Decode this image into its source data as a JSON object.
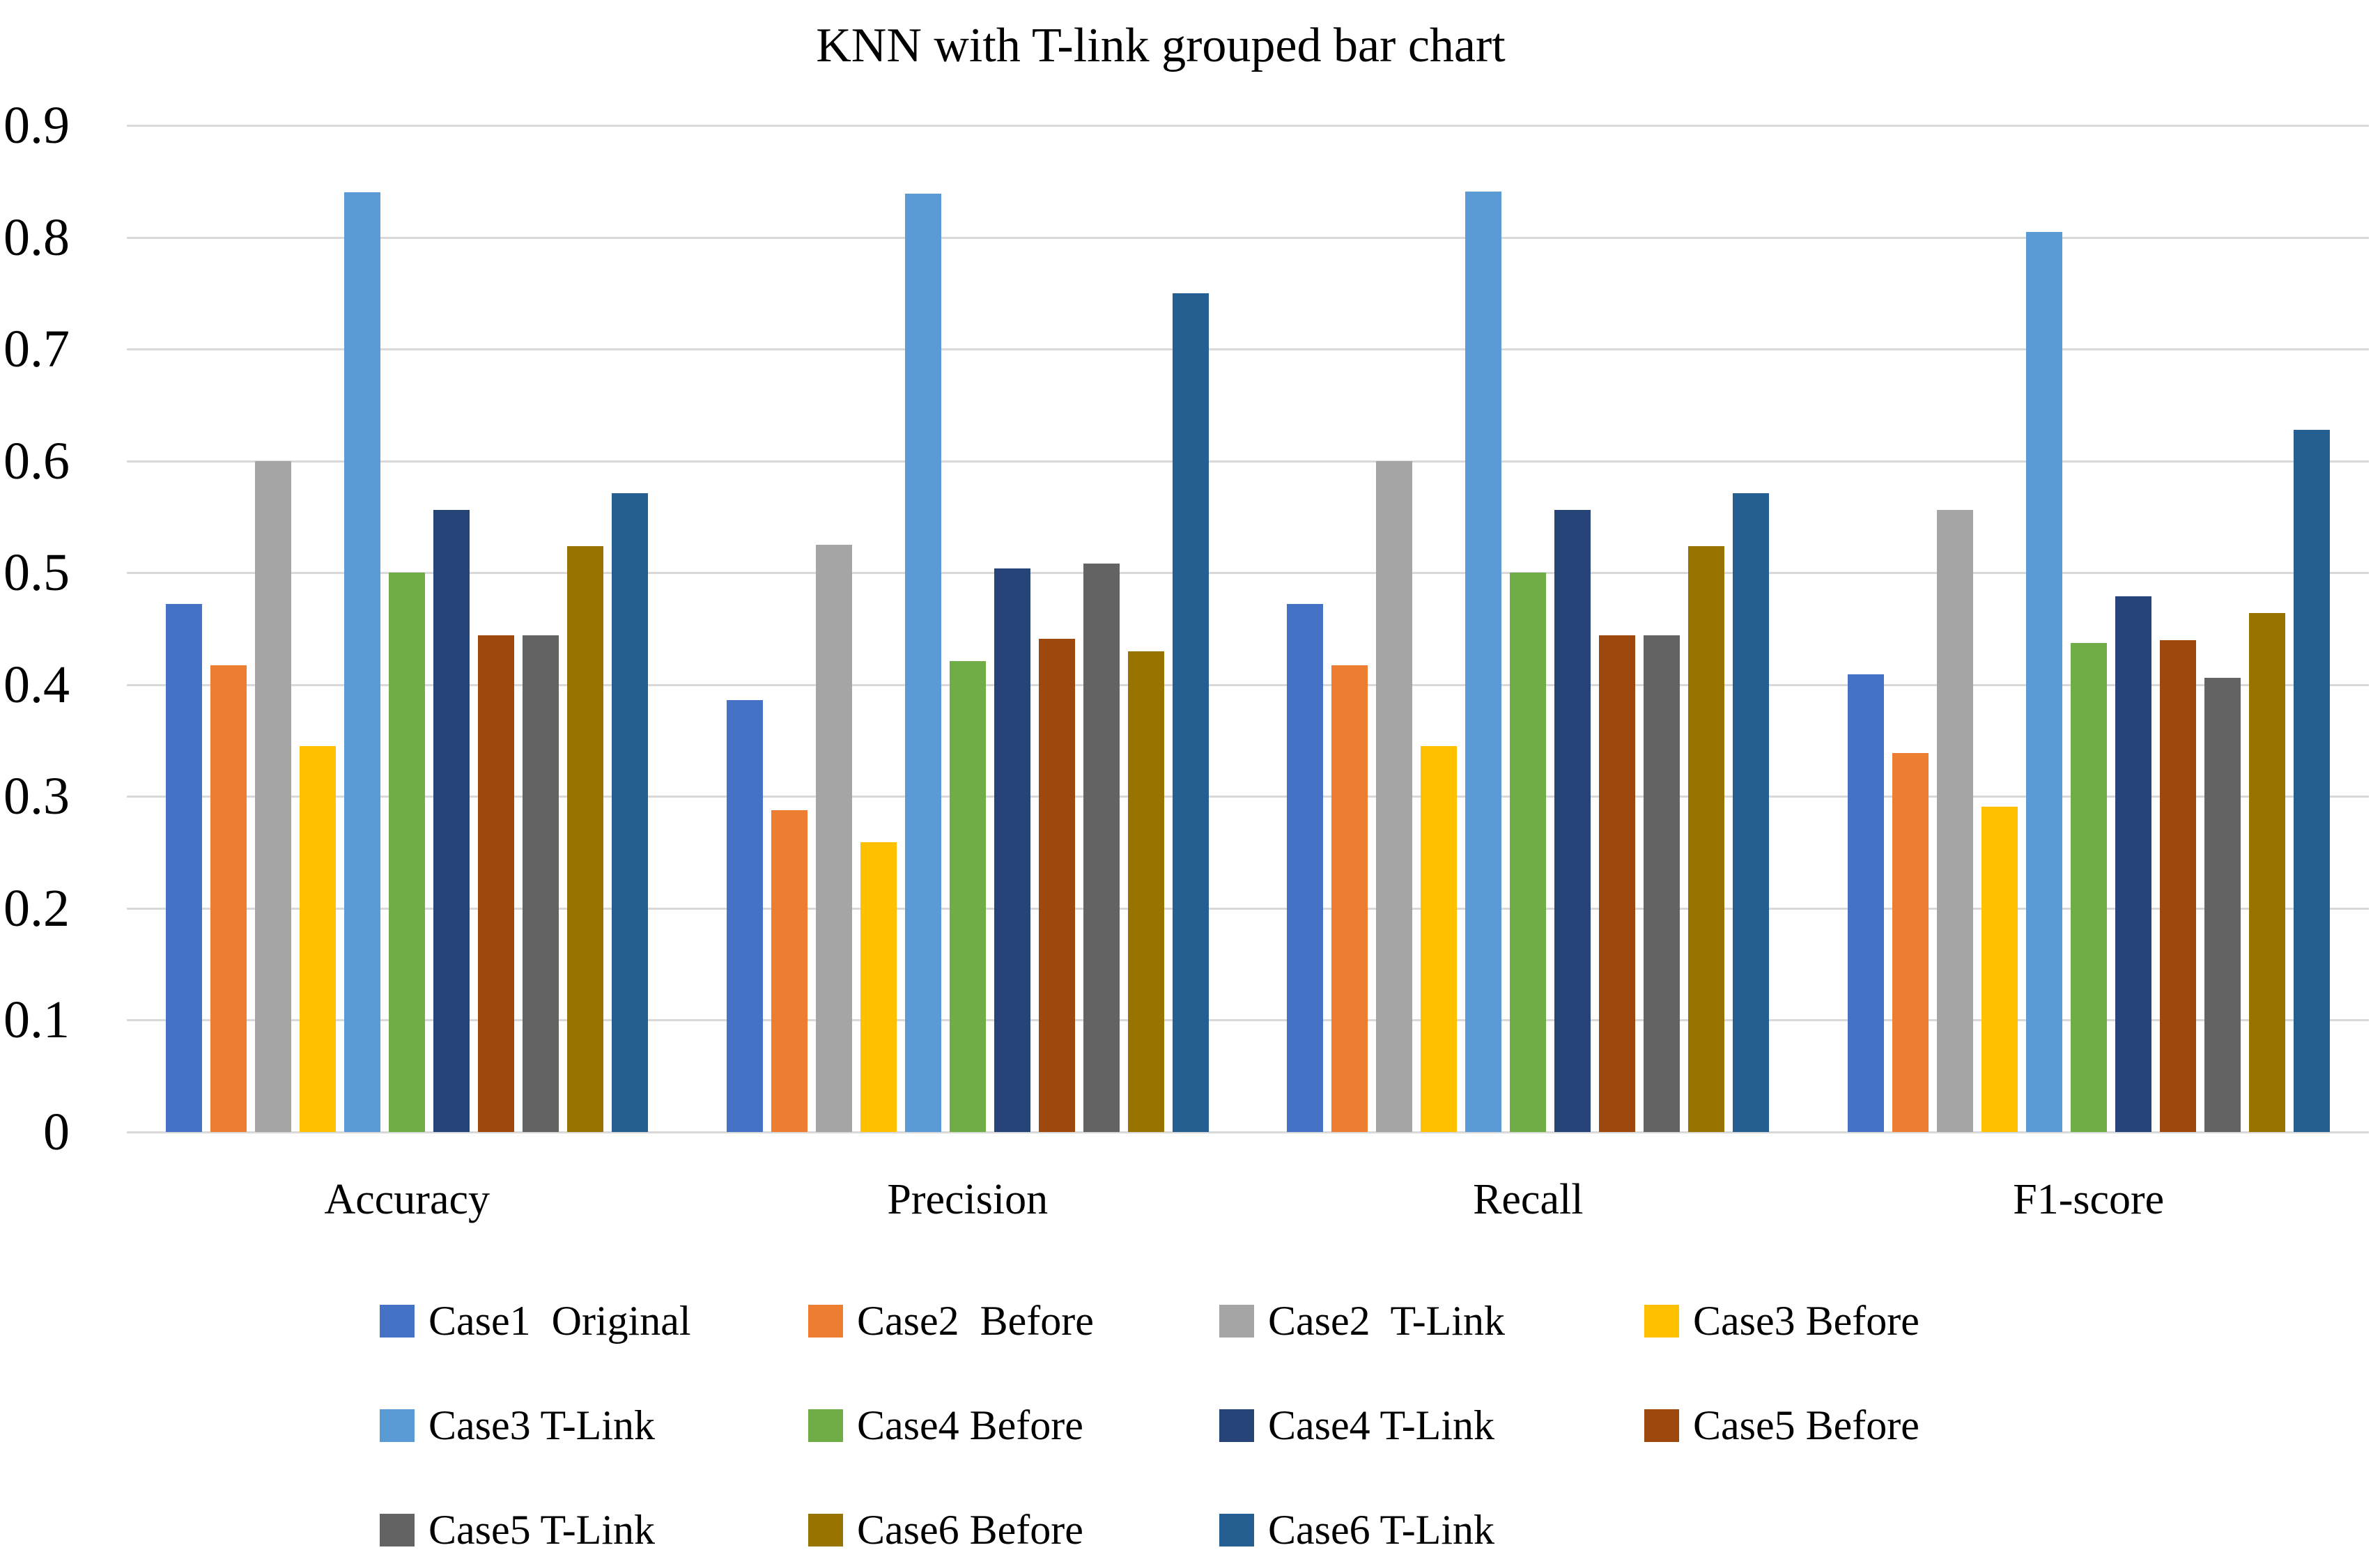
{
  "title": "KNN with T-link grouped bar chart",
  "colors": {
    "gridline": "#D9D9D9",
    "text": "#000000",
    "background": "#FFFFFF"
  },
  "chart_data": {
    "type": "bar",
    "title": "KNN with T-link grouped bar chart",
    "xlabel": "",
    "ylabel": "",
    "ylim": [
      0,
      0.9
    ],
    "grid": true,
    "legend_position": "bottom",
    "y_ticks": [
      "0.9",
      "0.8",
      "0.7",
      "0.6",
      "0.5",
      "0.4",
      "0.3",
      "0.2",
      "0.1",
      "0"
    ],
    "categories": [
      "Accuracy",
      "Precision",
      "Recall",
      "F1-score"
    ],
    "series": [
      {
        "name": "Case1  Original",
        "color": "#4472C4",
        "values": [
          0.472,
          0.386,
          0.472,
          0.409
        ]
      },
      {
        "name": "Case2  Before",
        "color": "#ED7D31",
        "values": [
          0.417,
          0.288,
          0.417,
          0.339
        ]
      },
      {
        "name": "Case2  T-Link",
        "color": "#A5A5A5",
        "values": [
          0.6,
          0.525,
          0.6,
          0.556
        ]
      },
      {
        "name": "Case3 Before",
        "color": "#FFC000",
        "values": [
          0.345,
          0.259,
          0.345,
          0.291
        ]
      },
      {
        "name": "Case3 T-Link",
        "color": "#5B9BD5",
        "values": [
          0.84,
          0.839,
          0.841,
          0.805
        ]
      },
      {
        "name": "Case4 Before",
        "color": "#70AD47",
        "values": [
          0.5,
          0.421,
          0.5,
          0.437
        ]
      },
      {
        "name": "Case4 T-Link",
        "color": "#264478",
        "values": [
          0.556,
          0.504,
          0.556,
          0.479
        ]
      },
      {
        "name": "Case5 Before",
        "color": "#9E480E",
        "values": [
          0.444,
          0.441,
          0.444,
          0.44
        ]
      },
      {
        "name": "Case5 T-Link",
        "color": "#636363",
        "values": [
          0.444,
          0.508,
          0.444,
          0.406
        ]
      },
      {
        "name": "Case6 Before",
        "color": "#997300",
        "values": [
          0.524,
          0.43,
          0.524,
          0.464
        ]
      },
      {
        "name": "Case6 T-Link",
        "color": "#255E91",
        "values": [
          0.571,
          0.75,
          0.571,
          0.628
        ]
      }
    ],
    "legend_rows": [
      [
        0,
        1,
        2,
        3
      ],
      [
        4,
        5,
        6,
        7
      ],
      [
        8,
        9,
        10
      ]
    ],
    "legend_col_offsets": [
      0,
      615,
      1205,
      1815
    ],
    "legend_row_spacing": 150
  }
}
